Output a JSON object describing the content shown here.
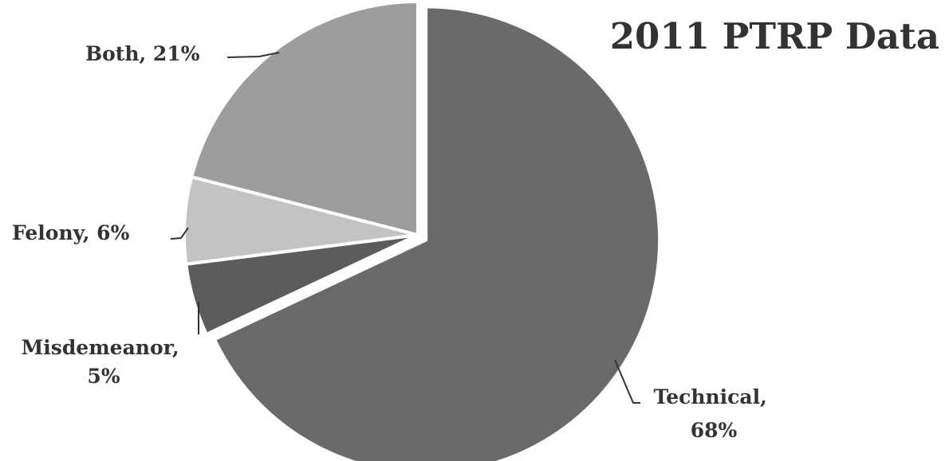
{
  "chart_data": {
    "type": "pie",
    "title": "2011 PTRP Data",
    "categories": [
      "Technical",
      "Misdemeanor",
      "Felony",
      "Both"
    ],
    "values": [
      68,
      5,
      6,
      21
    ],
    "unit": "%",
    "slice_labels": [
      [
        "Technical,",
        "68%"
      ],
      [
        "Misdemeanor,",
        "5%"
      ],
      [
        "Felony, 6%"
      ],
      [
        "Both, 21%"
      ]
    ],
    "colors": [
      "#6a6a6a",
      "#5c5c5c",
      "#c3c3c3",
      "#9d9d9d"
    ],
    "exploded": "Technical",
    "legend": "none"
  }
}
